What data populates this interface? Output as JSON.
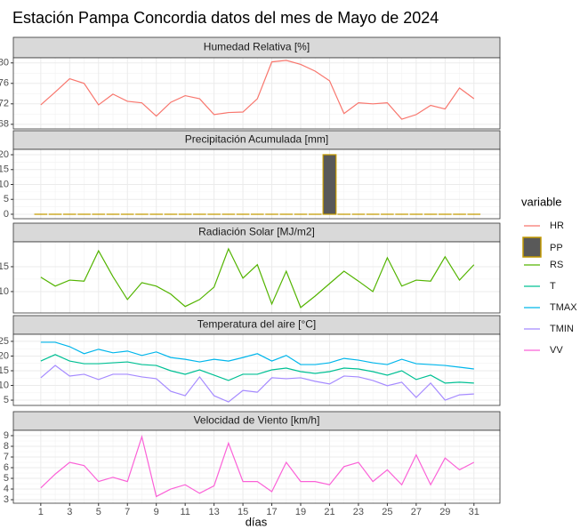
{
  "title": "Estación Pampa Concordia datos del mes de Mayo de 2024",
  "x_label": "días",
  "legend_title": "variable",
  "chart_data": [
    {
      "type": "line",
      "strip": "Humedad Relativa [%]",
      "x": [
        1,
        2,
        3,
        4,
        5,
        6,
        7,
        8,
        9,
        10,
        11,
        12,
        13,
        14,
        15,
        16,
        17,
        18,
        19,
        20,
        21,
        22,
        23,
        24,
        25,
        26,
        27,
        28,
        29,
        30,
        31
      ],
      "series": [
        {
          "name": "HR",
          "color": "#F8766D",
          "values": [
            71.8,
            74.3,
            76.9,
            76,
            71.8,
            73.9,
            72.5,
            72.2,
            69.6,
            72.3,
            73.6,
            73,
            69.9,
            70.3,
            70.4,
            73,
            80.2,
            80.5,
            79.7,
            78.4,
            76.5,
            70.1,
            72.2,
            72,
            72.2,
            69,
            69.9,
            71.7,
            71,
            75.1,
            73
          ]
        }
      ],
      "xlim": [
        -0.9,
        32.8
      ],
      "xticks": [
        1,
        3,
        5,
        7,
        9,
        11,
        13,
        15,
        17,
        19,
        21,
        23,
        25,
        27,
        29,
        31
      ],
      "ylim": [
        67.1,
        81
      ],
      "yticks": [
        68,
        72,
        76,
        80
      ],
      "grid": true
    },
    {
      "type": "bar",
      "strip": "Precipitación Acumulada [mm]",
      "x": [
        1,
        2,
        3,
        4,
        5,
        6,
        7,
        8,
        9,
        10,
        11,
        12,
        13,
        14,
        15,
        16,
        17,
        18,
        19,
        20,
        21,
        22,
        23,
        24,
        25,
        26,
        27,
        28,
        29,
        30,
        31
      ],
      "series": [
        {
          "name": "PP",
          "color": "#C49A00",
          "fill": "#595959",
          "values": [
            0,
            0,
            0,
            0,
            0,
            0,
            0,
            0,
            0,
            0,
            0,
            0,
            0,
            0,
            0,
            0,
            0,
            0,
            0,
            0,
            20,
            0,
            0,
            0,
            0,
            0,
            0,
            0,
            0,
            0,
            0
          ]
        }
      ],
      "xlim": [
        -0.9,
        32.8
      ],
      "xticks": [
        1,
        3,
        5,
        7,
        9,
        11,
        13,
        15,
        17,
        19,
        21,
        23,
        25,
        27,
        29,
        31
      ],
      "ylim": [
        -1.5,
        21.8
      ],
      "yticks": [
        0,
        5,
        10,
        15,
        20
      ],
      "grid": true
    },
    {
      "type": "line",
      "strip": "Radiación Solar [MJ/m2]",
      "x": [
        1,
        2,
        3,
        4,
        5,
        6,
        7,
        8,
        9,
        10,
        11,
        12,
        13,
        14,
        15,
        16,
        17,
        18,
        19,
        20,
        21,
        22,
        23,
        24,
        25,
        26,
        27,
        28,
        29,
        30,
        31
      ],
      "series": [
        {
          "name": "RS",
          "color": "#53B400",
          "values": [
            12.9,
            11.1,
            12.3,
            12.1,
            18.2,
            13,
            8.4,
            11.8,
            11.1,
            9.5,
            7,
            8.4,
            10.9,
            18.6,
            12.7,
            15.4,
            7.5,
            14.1,
            6.8,
            9.1,
            11.6,
            14.1,
            12.1,
            10,
            16.8,
            11.1,
            12.3,
            12.1,
            17,
            12.3,
            15.4
          ]
        }
      ],
      "xlim": [
        -0.9,
        32.8
      ],
      "xticks": [
        1,
        3,
        5,
        7,
        9,
        11,
        13,
        15,
        17,
        19,
        21,
        23,
        25,
        27,
        29,
        31
      ],
      "ylim": [
        5.7,
        20
      ],
      "yticks": [
        10,
        15
      ],
      "grid": true
    },
    {
      "type": "line",
      "strip": "Temperatura del aire [°C]",
      "x": [
        1,
        2,
        3,
        4,
        5,
        6,
        7,
        8,
        9,
        10,
        11,
        12,
        13,
        14,
        15,
        16,
        17,
        18,
        19,
        20,
        21,
        22,
        23,
        24,
        25,
        26,
        27,
        28,
        29,
        30,
        31
      ],
      "series": [
        {
          "name": "T",
          "color": "#00C094",
          "values": [
            18.3,
            20.5,
            18.3,
            17.4,
            17.4,
            17.7,
            18,
            17.1,
            16.8,
            15,
            13.8,
            15.3,
            13.5,
            11.7,
            13.8,
            13.8,
            15.3,
            15.9,
            14.7,
            14.1,
            14.7,
            15.9,
            15.6,
            14.7,
            13.5,
            15,
            12,
            13.5,
            10.8,
            11.1,
            10.8
          ]
        },
        {
          "name": "TMAX",
          "color": "#00B6EB",
          "values": [
            24.7,
            24.7,
            23.2,
            20.8,
            22.3,
            21.1,
            21.7,
            20.2,
            21.4,
            19.5,
            18.9,
            18,
            18.9,
            18.3,
            19.5,
            20.8,
            18.3,
            20.2,
            17.1,
            17.1,
            17.7,
            19.2,
            18.6,
            17.7,
            17.1,
            18.9,
            17.4,
            17.1,
            16.8,
            16.2,
            15.6
          ]
        },
        {
          "name": "TMIN",
          "color": "#A58AFF",
          "values": [
            12.6,
            16.8,
            13.2,
            13.8,
            12,
            13.8,
            13.8,
            12.9,
            12.3,
            8,
            6.5,
            12.9,
            6.5,
            4.4,
            8.3,
            7.7,
            12.6,
            12.3,
            12.6,
            11.4,
            10.5,
            13.2,
            12.9,
            11.7,
            9.9,
            11.1,
            5.9,
            10.8,
            5,
            6.8,
            7.1
          ]
        }
      ],
      "xlim": [
        -0.9,
        32.8
      ],
      "xticks": [
        1,
        3,
        5,
        7,
        9,
        11,
        13,
        15,
        17,
        19,
        21,
        23,
        25,
        27,
        29,
        31
      ],
      "ylim": [
        3.2,
        27.4
      ],
      "yticks": [
        5,
        10,
        15,
        20,
        25
      ],
      "grid": true
    },
    {
      "type": "line",
      "strip": "Velocidad de Viento [km/h]",
      "x": [
        1,
        2,
        3,
        4,
        5,
        6,
        7,
        8,
        9,
        10,
        11,
        12,
        13,
        14,
        15,
        16,
        17,
        18,
        19,
        20,
        21,
        22,
        23,
        24,
        25,
        26,
        27,
        28,
        29,
        30,
        31
      ],
      "series": [
        {
          "name": "VV",
          "color": "#FB61D7",
          "values": [
            4.1,
            5.4,
            6.5,
            6.2,
            4.7,
            5.1,
            4.7,
            8.9,
            3.3,
            4,
            4.4,
            3.6,
            4.3,
            8.3,
            4.7,
            4.7,
            3.75,
            6.5,
            4.7,
            4.7,
            4.4,
            6.1,
            6.5,
            4.7,
            5.8,
            4.4,
            7.2,
            4.4,
            6.9,
            5.8,
            6.5
          ]
        }
      ],
      "xlim": [
        -0.9,
        32.8
      ],
      "xticks": [
        1,
        3,
        5,
        7,
        9,
        11,
        13,
        15,
        17,
        19,
        21,
        23,
        25,
        27,
        29,
        31
      ],
      "ylim": [
        2.67,
        9.5
      ],
      "yticks": [
        3,
        4,
        5,
        6,
        7,
        8,
        9
      ],
      "grid": true
    }
  ]
}
